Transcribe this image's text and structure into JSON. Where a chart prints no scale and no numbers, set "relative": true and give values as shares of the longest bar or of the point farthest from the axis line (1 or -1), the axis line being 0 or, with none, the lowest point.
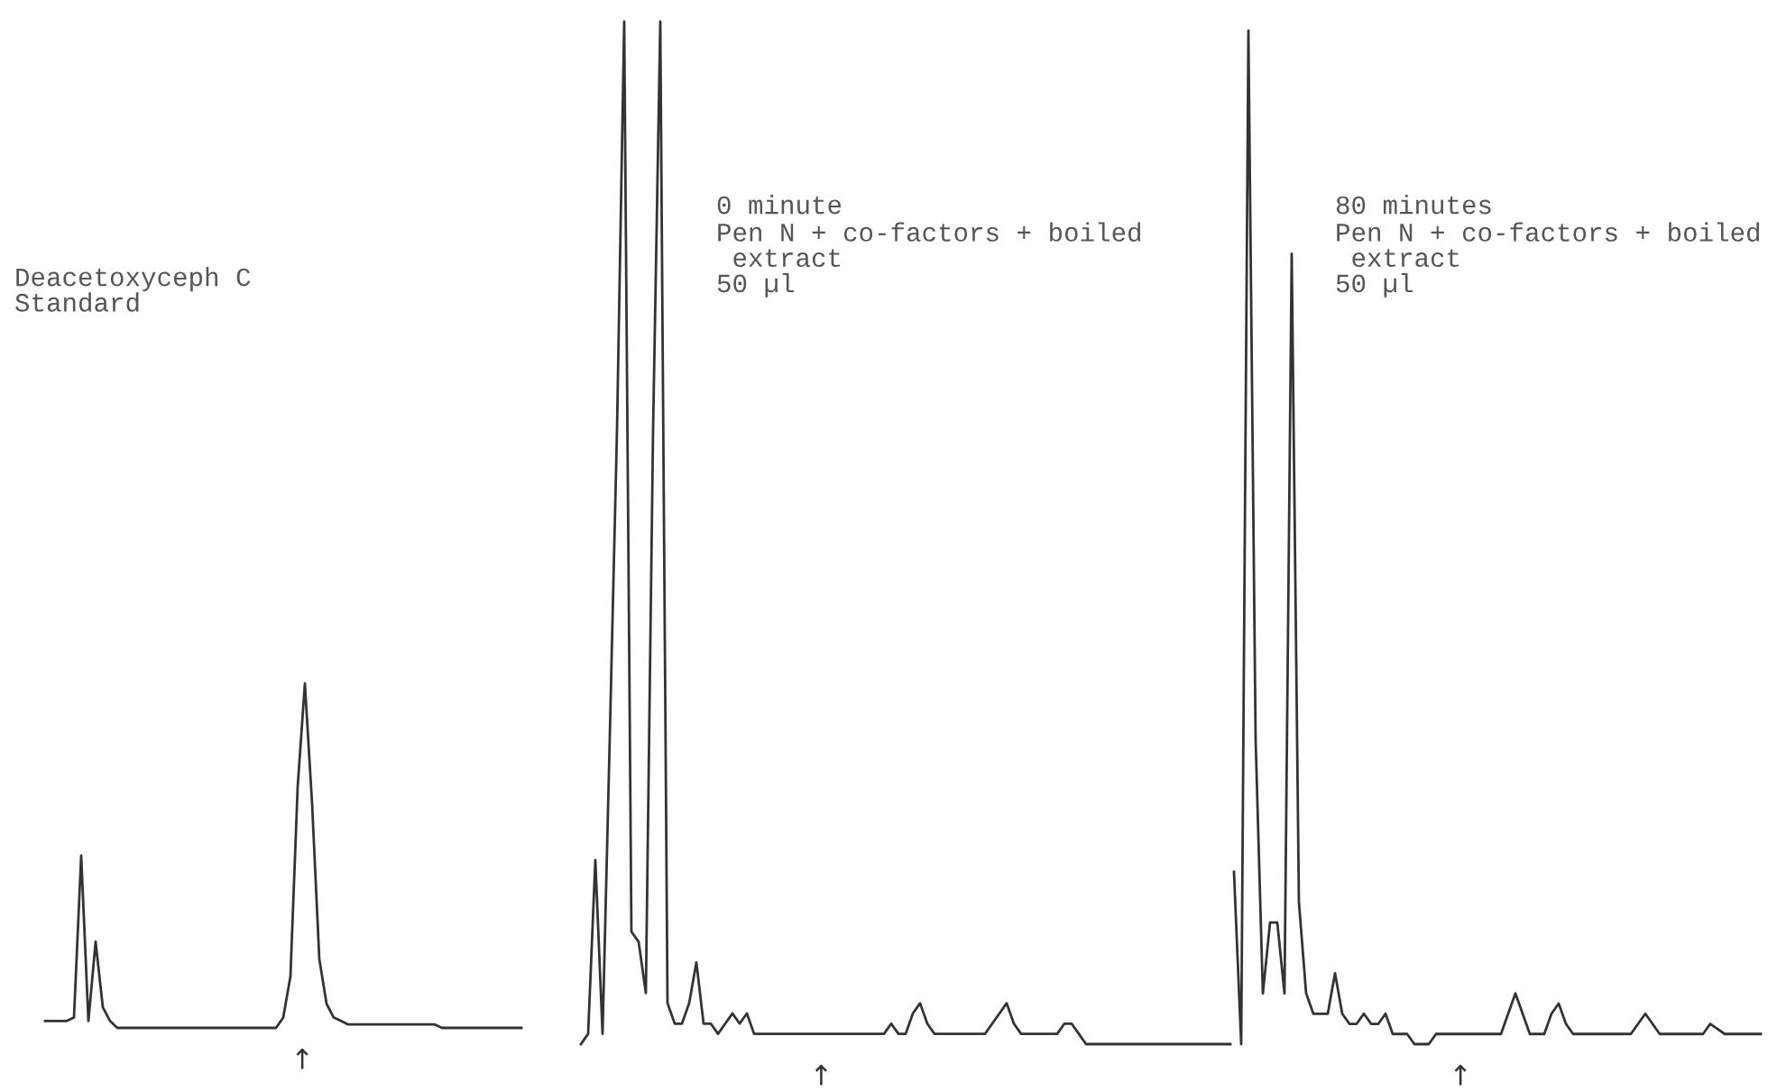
{
  "chart_data": [
    {
      "type": "line",
      "relative": true,
      "title": "Deacetoxyceph C\nStandard",
      "annotations": [
        "↑"
      ],
      "categories": [
        null,
        null,
        null,
        null,
        null,
        null,
        null,
        null,
        null,
        null,
        null,
        null,
        null,
        null,
        null,
        null,
        null,
        null,
        null,
        null,
        null,
        null,
        null,
        null,
        null,
        null,
        null,
        null,
        null,
        null,
        null,
        null,
        null,
        null,
        null,
        null,
        null,
        null,
        null,
        null,
        null,
        null,
        null,
        null,
        null,
        null,
        null,
        null,
        null,
        null,
        null,
        null,
        null,
        null,
        null,
        null,
        null,
        null,
        null,
        null,
        null,
        null,
        null,
        null,
        null,
        null,
        null
      ],
      "series": [
        {
          "color": "#333333",
          "values": [
            0.02,
            0.02,
            0.02,
            0.02,
            0.03,
            0.5,
            0.02,
            0.25,
            0.06,
            0.02,
            0,
            0,
            0,
            0,
            0,
            0,
            0,
            0,
            0,
            0,
            0,
            0,
            0,
            0,
            0,
            0,
            0,
            0,
            0,
            0,
            0,
            0,
            0,
            0.03,
            0.15,
            0.7,
            1,
            0.65,
            0.2,
            0.07,
            0.03,
            0.02,
            0.01,
            0.01,
            0.01,
            0.01,
            0.01,
            0.01,
            0.01,
            0.01,
            0.01,
            0.01,
            0.01,
            0.01,
            0.01,
            0,
            0,
            0,
            0,
            0,
            0,
            0,
            0,
            0,
            0,
            0,
            0
          ]
        }
      ]
    },
    {
      "type": "line",
      "relative": true,
      "title": "0 minute",
      "subtitle": "Pen N + co-factors + boiled\n extract\n50 µl",
      "annotations": [
        "↑"
      ],
      "categories": [
        null,
        null,
        null,
        null,
        null,
        null,
        null,
        null,
        null,
        null,
        null,
        null,
        null,
        null,
        null,
        null,
        null,
        null,
        null,
        null,
        null,
        null,
        null,
        null,
        null,
        null,
        null,
        null,
        null,
        null,
        null,
        null,
        null,
        null,
        null,
        null,
        null,
        null,
        null,
        null,
        null,
        null,
        null,
        null,
        null,
        null,
        null,
        null,
        null,
        null,
        null,
        null,
        null,
        null,
        null,
        null,
        null,
        null,
        null,
        null,
        null,
        null,
        null,
        null,
        null,
        null,
        null,
        null,
        null,
        null,
        null,
        null,
        null,
        null,
        null,
        null,
        null,
        null,
        null,
        null,
        null,
        null,
        null,
        null,
        null,
        null,
        null,
        null,
        null,
        null,
        null
      ],
      "series": [
        {
          "color": "#333333",
          "values": [
            0,
            0.01,
            0.18,
            0.01,
            0.3,
            0.6,
            1,
            0.11,
            0.1,
            0.05,
            0.6,
            1,
            0.04,
            0.02,
            0.02,
            0.04,
            0.08,
            0.02,
            0.02,
            0.01,
            0.02,
            0.03,
            0.02,
            0.03,
            0.01,
            0.01,
            0.01,
            0.01,
            0.01,
            0.01,
            0.01,
            0.01,
            0.01,
            0.01,
            0.01,
            0.01,
            0.01,
            0.01,
            0.01,
            0.01,
            0.01,
            0.01,
            0.01,
            0.02,
            0.01,
            0.01,
            0.03,
            0.04,
            0.02,
            0.01,
            0.01,
            0.01,
            0.01,
            0.01,
            0.01,
            0.01,
            0.01,
            0.02,
            0.03,
            0.04,
            0.02,
            0.01,
            0.01,
            0.01,
            0.01,
            0.01,
            0.01,
            0.02,
            0.02,
            0.01,
            0,
            0,
            0,
            0,
            0,
            0,
            0,
            0,
            0,
            0,
            0,
            0,
            0,
            0,
            0,
            0,
            0,
            0,
            0,
            0,
            0
          ]
        }
      ]
    },
    {
      "type": "line",
      "relative": true,
      "title": "80 minutes",
      "subtitle": "Pen N + co-factors + boiled\n extract\n50 µl",
      "annotations": [
        "↑"
      ],
      "categories": [
        null,
        null,
        null,
        null,
        null,
        null,
        null,
        null,
        null,
        null,
        null,
        null,
        null,
        null,
        null,
        null,
        null,
        null,
        null,
        null,
        null,
        null,
        null,
        null,
        null,
        null,
        null,
        null,
        null,
        null,
        null,
        null,
        null,
        null,
        null,
        null,
        null,
        null,
        null,
        null,
        null,
        null,
        null,
        null,
        null,
        null,
        null,
        null,
        null,
        null,
        null,
        null,
        null,
        null,
        null,
        null,
        null,
        null,
        null,
        null,
        null,
        null,
        null,
        null,
        null,
        null,
        null,
        null,
        null,
        null,
        null,
        null,
        null,
        null
      ],
      "series": [
        {
          "color": "#333333",
          "values": [
            0.17,
            0,
            1,
            0.3,
            0.05,
            0.12,
            0.12,
            0.05,
            0.78,
            0.14,
            0.05,
            0.03,
            0.03,
            0.03,
            0.07,
            0.03,
            0.02,
            0.02,
            0.03,
            0.02,
            0.02,
            0.03,
            0.01,
            0.01,
            0.01,
            0,
            0,
            0,
            0.01,
            0.01,
            0.01,
            0.01,
            0.01,
            0.01,
            0.01,
            0.01,
            0.01,
            0.01,
            0.03,
            0.05,
            0.03,
            0.01,
            0.01,
            0.01,
            0.03,
            0.04,
            0.02,
            0.01,
            0.01,
            0.01,
            0.01,
            0.01,
            0.01,
            0.01,
            0.01,
            0.01,
            0.02,
            0.03,
            0.02,
            0.01,
            0.01,
            0.01,
            0.01,
            0.01,
            0.01,
            0.01,
            0.02,
            0.015,
            0.01,
            0.01,
            0.01,
            0.01,
            0.01,
            0.01
          ]
        }
      ]
    }
  ]
}
